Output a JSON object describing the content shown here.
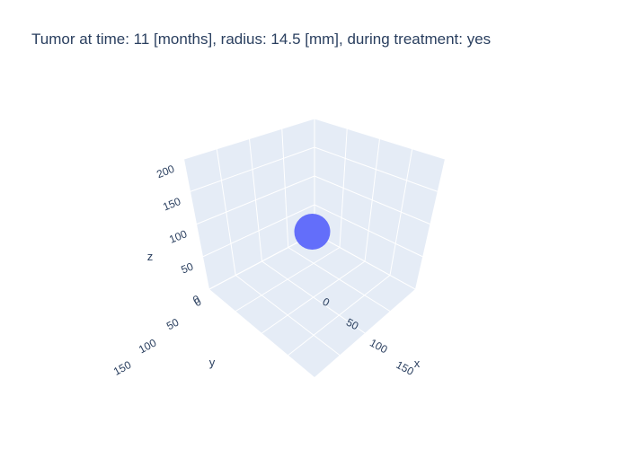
{
  "chart_data": {
    "type": "scatter3d",
    "title": "Tumor at time: 11 [months], radius: 14.5 [mm], during treatment: yes",
    "x_label": "x",
    "y_label": "y",
    "z_label": "z",
    "x_ticks": [
      "0",
      "50",
      "100",
      "150"
    ],
    "y_ticks": [
      "0",
      "50",
      "100",
      "150"
    ],
    "z_ticks": [
      "0",
      "50",
      "100",
      "150",
      "200"
    ],
    "xlim": [
      0,
      200
    ],
    "ylim": [
      0,
      200
    ],
    "zlim": [
      0,
      200
    ],
    "points": [
      {
        "x": 100,
        "y": 100,
        "z": 100,
        "radius_mm": 14.5
      }
    ],
    "marker_color": "#636efa",
    "background_color": "#e5ecf6",
    "grid": true
  }
}
